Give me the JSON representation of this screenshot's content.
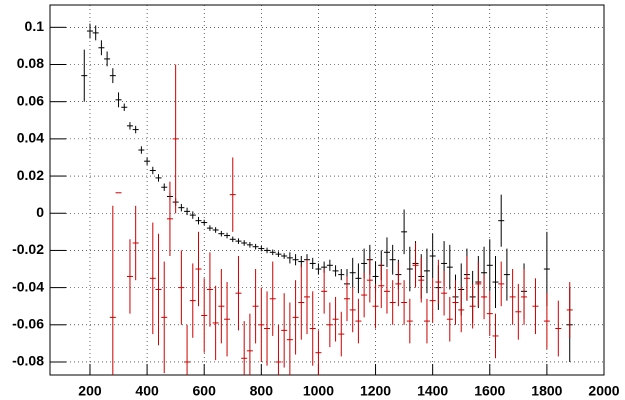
{
  "chart_data": {
    "type": "errorbar",
    "xlim": [
      60,
      2000
    ],
    "ylim": [
      -0.087,
      0.112
    ],
    "xticks": [
      200,
      400,
      600,
      800,
      1000,
      1200,
      1400,
      1600,
      1800,
      2000
    ],
    "yticks": [
      -0.08,
      -0.06,
      -0.04,
      -0.02,
      0,
      0.02,
      0.04,
      0.06,
      0.08,
      0.1
    ],
    "grid": true,
    "series": [
      {
        "color": "#000000",
        "x": [
          180,
          200,
          220,
          240,
          260,
          280,
          300,
          320,
          340,
          360,
          380,
          400,
          420,
          440,
          460,
          480,
          500,
          520,
          540,
          560,
          580,
          600,
          620,
          640,
          660,
          680,
          700,
          720,
          740,
          760,
          780,
          800,
          820,
          840,
          860,
          880,
          900,
          920,
          940,
          960,
          980,
          1000,
          1020,
          1040,
          1060,
          1080,
          1100,
          1120,
          1140,
          1160,
          1180,
          1200,
          1220,
          1240,
          1260,
          1280,
          1300,
          1320,
          1340,
          1360,
          1380,
          1400,
          1420,
          1440,
          1460,
          1480,
          1500,
          1520,
          1540,
          1560,
          1580,
          1600,
          1620,
          1640,
          1660,
          1720,
          1800,
          1880
        ],
        "values": [
          0.074,
          0.098,
          0.097,
          0.089,
          0.083,
          0.074,
          0.061,
          0.057,
          0.047,
          0.045,
          0.034,
          0.028,
          0.023,
          0.019,
          0.014,
          0.009,
          0.006,
          0.003,
          0.001,
          -0.001,
          -0.004,
          -0.005,
          -0.008,
          -0.009,
          -0.011,
          -0.012,
          -0.014,
          -0.015,
          -0.016,
          -0.017,
          -0.018,
          -0.019,
          -0.02,
          -0.021,
          -0.022,
          -0.023,
          -0.024,
          -0.025,
          -0.026,
          -0.025,
          -0.027,
          -0.03,
          -0.029,
          -0.028,
          -0.031,
          -0.033,
          -0.038,
          -0.032,
          -0.035,
          -0.027,
          -0.025,
          -0.034,
          -0.028,
          -0.021,
          -0.025,
          -0.033,
          -0.01,
          -0.03,
          -0.027,
          -0.034,
          -0.031,
          -0.023,
          -0.04,
          -0.027,
          -0.029,
          -0.045,
          -0.041,
          -0.033,
          -0.045,
          -0.037,
          -0.032,
          -0.028,
          -0.037,
          -0.004,
          -0.033,
          -0.042,
          -0.03,
          -0.06
        ],
        "errors": [
          0.014,
          0.004,
          0.004,
          0.004,
          0.004,
          0.004,
          0.004,
          0.002,
          0.002,
          0.002,
          0.002,
          0.002,
          0.002,
          0.002,
          0.002,
          0.002,
          0.002,
          0.002,
          0.002,
          0.002,
          0.002,
          0.0015,
          0.0015,
          0.0015,
          0.0015,
          0.0015,
          0.0015,
          0.0015,
          0.0015,
          0.0015,
          0.0015,
          0.0015,
          0.0015,
          0.0015,
          0.0015,
          0.0015,
          0.003,
          0.003,
          0.003,
          0.003,
          0.003,
          0.003,
          0.003,
          0.003,
          0.003,
          0.003,
          0.008,
          0.008,
          0.008,
          0.008,
          0.008,
          0.008,
          0.008,
          0.008,
          0.008,
          0.008,
          0.012,
          0.012,
          0.012,
          0.012,
          0.012,
          0.012,
          0.012,
          0.012,
          0.012,
          0.012,
          0.014,
          0.014,
          0.014,
          0.014,
          0.014,
          0.014,
          0.014,
          0.014,
          0.014,
          0.015,
          0.02,
          0.02
        ]
      },
      {
        "color": "#cc0000",
        "x": [
          280,
          300,
          340,
          360,
          420,
          440,
          460,
          480,
          500,
          520,
          540,
          560,
          580,
          600,
          620,
          640,
          660,
          680,
          700,
          720,
          740,
          760,
          780,
          800,
          820,
          840,
          860,
          880,
          900,
          920,
          940,
          960,
          980,
          1000,
          1020,
          1040,
          1060,
          1080,
          1100,
          1120,
          1140,
          1160,
          1180,
          1200,
          1220,
          1240,
          1260,
          1280,
          1300,
          1320,
          1340,
          1360,
          1380,
          1400,
          1420,
          1440,
          1460,
          1480,
          1500,
          1520,
          1540,
          1560,
          1580,
          1600,
          1620,
          1640,
          1680,
          1700,
          1720,
          1760,
          1800,
          1840,
          1880
        ],
        "values": [
          -0.056,
          0.011,
          -0.034,
          -0.016,
          -0.035,
          -0.041,
          -0.056,
          -0.003,
          0.04,
          -0.04,
          -0.08,
          -0.047,
          -0.03,
          -0.055,
          -0.041,
          -0.059,
          -0.05,
          -0.057,
          0.01,
          -0.043,
          -0.078,
          -0.074,
          -0.05,
          -0.06,
          -0.062,
          -0.046,
          -0.08,
          -0.063,
          -0.068,
          -0.056,
          -0.048,
          -0.045,
          -0.062,
          -0.075,
          -0.042,
          -0.06,
          -0.057,
          -0.065,
          -0.046,
          -0.052,
          -0.058,
          -0.044,
          -0.036,
          -0.05,
          -0.039,
          -0.042,
          -0.048,
          -0.038,
          -0.048,
          -0.058,
          -0.028,
          -0.036,
          -0.058,
          -0.047,
          -0.037,
          -0.043,
          -0.057,
          -0.048,
          -0.052,
          -0.035,
          -0.05,
          -0.038,
          -0.045,
          -0.054,
          -0.066,
          -0.038,
          -0.045,
          -0.053,
          -0.045,
          -0.05,
          -0.058,
          -0.062,
          -0.052
        ],
        "errors": [
          0.06,
          0,
          0.02,
          0.02,
          0.03,
          0.03,
          0.03,
          0.02,
          0.04,
          0.02,
          0.02,
          0.02,
          0.02,
          0.02,
          0.02,
          0.02,
          0.02,
          0.02,
          0.02,
          0.02,
          0.02,
          0.02,
          0.02,
          0.02,
          0.02,
          0.02,
          0.02,
          0.02,
          0.02,
          0.02,
          0.02,
          0.02,
          0.02,
          0.012,
          0.012,
          0.012,
          0.012,
          0.012,
          0.012,
          0.012,
          0.012,
          0.012,
          0.012,
          0.012,
          0.012,
          0.012,
          0.012,
          0.012,
          0.012,
          0.012,
          0.012,
          0.012,
          0.012,
          0.012,
          0.012,
          0.012,
          0.012,
          0.012,
          0.012,
          0.012,
          0.012,
          0.012,
          0.012,
          0.012,
          0.012,
          0.012,
          0.015,
          0.015,
          0.015,
          0.015,
          0.015,
          0.015,
          0.015
        ]
      }
    ]
  }
}
